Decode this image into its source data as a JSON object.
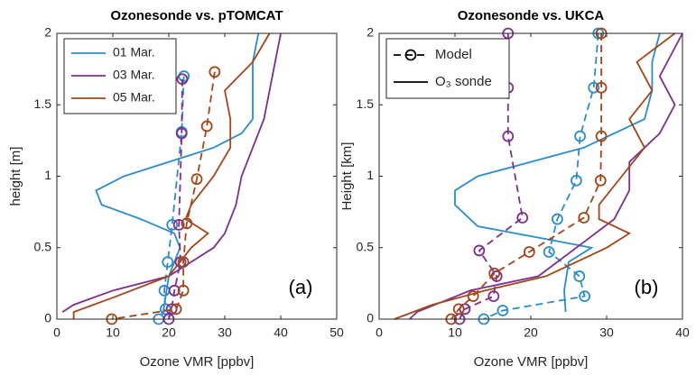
{
  "chart_data": [
    {
      "type": "line",
      "title": "Ozonesonde vs. pTOMCAT",
      "xlabel": "Ozone VMR [ppbv]",
      "ylabel": "height [m]",
      "xlim": [
        0,
        50
      ],
      "xticks": [
        0,
        10,
        20,
        30,
        40,
        50
      ],
      "ylim": [
        0,
        2
      ],
      "yticks": [
        0,
        0.5,
        1,
        1.5,
        2
      ],
      "annotation": "(a)",
      "legend_position": "upper-left",
      "series": [
        {
          "name": "01 Mar.",
          "color": "#2a8ccc",
          "model": {
            "x": [
              22.7,
              22.3,
              20.6,
              19.8,
              19.2,
              19.4,
              18.2
            ],
            "y": [
              1.7,
              1.31,
              0.66,
              0.4,
              0.2,
              0.07,
              0
            ]
          },
          "sonde": {
            "x": [
              19,
              20,
              22,
              21,
              15,
              8,
              7,
              12,
              20,
              28,
              33,
              35,
              35,
              35,
              36
            ],
            "y": [
              0.05,
              0.3,
              0.5,
              0.6,
              0.7,
              0.8,
              0.9,
              1,
              1.1,
              1.2,
              1.3,
              1.4,
              1.6,
              1.8,
              2
            ]
          }
        },
        {
          "name": "03 Mar.",
          "color": "#7e2f8e",
          "model": {
            "x": [
              22.4,
              22.3,
              21.8,
              22.1,
              21,
              20.5,
              20
            ],
            "y": [
              1.68,
              1.3,
              0.66,
              0.4,
              0.2,
              0.07,
              0
            ]
          },
          "sonde": {
            "x": [
              1,
              3,
              10,
              20,
              24,
              28,
              30,
              32,
              33,
              35,
              37,
              38,
              39,
              40
            ],
            "y": [
              0.05,
              0.1,
              0.2,
              0.3,
              0.4,
              0.5,
              0.6,
              0.8,
              1,
              1.2,
              1.4,
              1.6,
              1.8,
              2
            ]
          }
        },
        {
          "name": "05 Mar.",
          "color": "#a2461a",
          "model": {
            "x": [
              28.2,
              26.8,
              25,
              23.2,
              22.6,
              22.6,
              21.3,
              9.8
            ],
            "y": [
              1.73,
              1.35,
              0.98,
              0.67,
              0.4,
              0.2,
              0.07,
              0
            ]
          },
          "sonde": {
            "x": [
              3,
              3,
              10,
              20,
              24,
              27,
              23,
              24,
              28,
              31,
              31,
              30,
              35,
              38
            ],
            "y": [
              0,
              0.05,
              0.15,
              0.3,
              0.5,
              0.6,
              0.7,
              0.8,
              1,
              1.2,
              1.4,
              1.6,
              1.8,
              2
            ]
          }
        }
      ]
    },
    {
      "type": "line",
      "title": "Ozonesonde vs. UKCA",
      "xlabel": "Ozone VMR [ppbv]",
      "ylabel": "Height [km]",
      "xlim": [
        0,
        40
      ],
      "xticks": [
        0,
        10,
        20,
        30,
        40
      ],
      "ylim": [
        0,
        2
      ],
      "yticks": [
        0,
        0.5,
        1,
        1.5,
        2
      ],
      "annotation": "(b)",
      "legend_position": "upper-left",
      "legend": [
        "Model",
        "O₃ sonde"
      ],
      "series": [
        {
          "color": "#2a8ccc",
          "model": {
            "x": [
              28.9,
              28.3,
              26.5,
              26.0,
              23.5,
              22.4,
              26.4,
              27.1,
              16.3,
              13.8
            ],
            "y": [
              2,
              1.62,
              1.28,
              0.97,
              0.7,
              0.47,
              0.3,
              0.16,
              0.06,
              0
            ]
          },
          "sonde": {
            "x": [
              24.6,
              24.4,
              25,
              28,
              23,
              13,
              10,
              10,
              13,
              20,
              27,
              35,
              36,
              36,
              37
            ],
            "y": [
              0.05,
              0.2,
              0.4,
              0.5,
              0.55,
              0.65,
              0.8,
              0.9,
              1,
              1.1,
              1.2,
              1.4,
              1.6,
              1.8,
              2
            ]
          }
        },
        {
          "color": "#7e2f8e",
          "model": {
            "x": [
              17,
              17,
              17,
              18.9,
              13.2,
              15.5,
              15.1,
              11.3,
              10.6
            ],
            "y": [
              2,
              1.62,
              1.28,
              0.71,
              0.48,
              0.3,
              0.16,
              0.07,
              0
            ]
          },
          "sonde": {
            "x": [
              4,
              5,
              12,
              21,
              26,
              31,
              33,
              33,
              37,
              39,
              37,
              40
            ],
            "y": [
              0,
              0.05,
              0.2,
              0.3,
              0.5,
              0.7,
              0.9,
              1.1,
              1.3,
              1.5,
              1.7,
              2
            ]
          }
        },
        {
          "color": "#a2461a",
          "model": {
            "x": [
              29.3,
              29.3,
              29.3,
              29.2,
              27,
              19.8,
              15.2,
              12.4,
              10.5,
              9.5
            ],
            "y": [
              2,
              1.62,
              1.28,
              0.97,
              0.71,
              0.47,
              0.32,
              0.16,
              0.07,
              0
            ]
          },
          "sonde": {
            "x": [
              2,
              7,
              14,
              22,
              30,
              33,
              29,
              29,
              32,
              35,
              33,
              36,
              34,
              39
            ],
            "y": [
              0,
              0.1,
              0.2,
              0.3,
              0.5,
              0.6,
              0.7,
              0.8,
              1,
              1.2,
              1.4,
              1.6,
              1.8,
              2
            ]
          }
        }
      ]
    }
  ]
}
